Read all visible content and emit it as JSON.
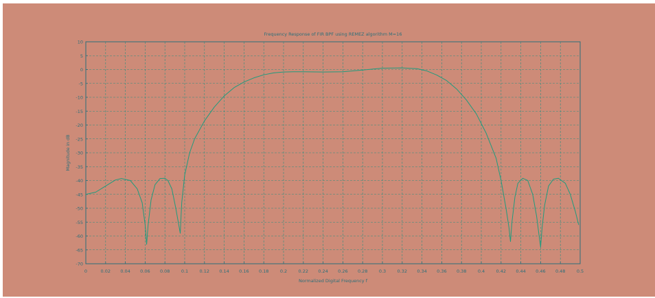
{
  "chart_data": {
    "type": "line",
    "title": "Frequency Response of FIR BPF using REMEZ algorithm M=16",
    "xlabel": "Normalized Digital Frequency f",
    "ylabel": "Magnitude in dB",
    "xlim": [
      0,
      0.5
    ],
    "ylim": [
      -70,
      10
    ],
    "xticks": [
      "0",
      "0.02",
      "0.04",
      "0.06",
      "0.08",
      "0.1",
      "0.12",
      "0.14",
      "0.16",
      "0.18",
      "0.2",
      "0.22",
      "0.24",
      "0.26",
      "0.28",
      "0.3",
      "0.32",
      "0.34",
      "0.36",
      "0.38",
      "0.4",
      "0.42",
      "0.44",
      "0.46",
      "0.48",
      "0.5"
    ],
    "yticks": [
      "10",
      "5",
      "0",
      "-5",
      "-10",
      "-15",
      "-20",
      "-25",
      "-30",
      "-35",
      "-40",
      "-45",
      "-50",
      "-55",
      "-60",
      "-65",
      "-70"
    ],
    "grid": true,
    "colors": {
      "background": "#cd8b78",
      "line": "#1e9c7e",
      "axis": "#2a6f7a",
      "grid": "#2f8f7f"
    },
    "series": [
      {
        "x": [
          0,
          0.01,
          0.02,
          0.03,
          0.036,
          0.045,
          0.052,
          0.057,
          0.06,
          0.0615,
          0.063,
          0.066,
          0.07,
          0.075,
          0.08,
          0.083,
          0.087,
          0.091,
          0.094,
          0.0955,
          0.097,
          0.1,
          0.105,
          0.11,
          0.12,
          0.13,
          0.14,
          0.15,
          0.16,
          0.17,
          0.18,
          0.19,
          0.2,
          0.21,
          0.22,
          0.24,
          0.26,
          0.28,
          0.3,
          0.32,
          0.335,
          0.345,
          0.355,
          0.365,
          0.375,
          0.385,
          0.395,
          0.405,
          0.415,
          0.42,
          0.425,
          0.428,
          0.4295,
          0.431,
          0.434,
          0.437,
          0.442,
          0.447,
          0.452,
          0.456,
          0.4585,
          0.46,
          0.4615,
          0.464,
          0.468,
          0.473,
          0.478,
          0.485,
          0.49,
          0.495,
          0.4985
        ],
        "y": [
          -45,
          -44.2,
          -42,
          -39.8,
          -39.3,
          -40,
          -43,
          -48,
          -56,
          -63,
          -56,
          -47,
          -41.5,
          -39.3,
          -39.2,
          -40,
          -43,
          -50,
          -56,
          -59,
          -48,
          -38,
          -30,
          -25,
          -18.5,
          -13.5,
          -9.5,
          -6.5,
          -4.5,
          -3,
          -1.9,
          -1.2,
          -0.9,
          -0.8,
          -0.8,
          -0.9,
          -0.8,
          -0.2,
          0.5,
          0.6,
          0.3,
          -0.5,
          -2,
          -4,
          -7,
          -11,
          -16,
          -23,
          -32,
          -40,
          -50,
          -57,
          -62,
          -55,
          -46,
          -41,
          -39.2,
          -40,
          -45,
          -53,
          -60,
          -64,
          -57,
          -49,
          -42,
          -39.5,
          -39.2,
          -41,
          -45,
          -51,
          -56
        ]
      }
    ]
  }
}
